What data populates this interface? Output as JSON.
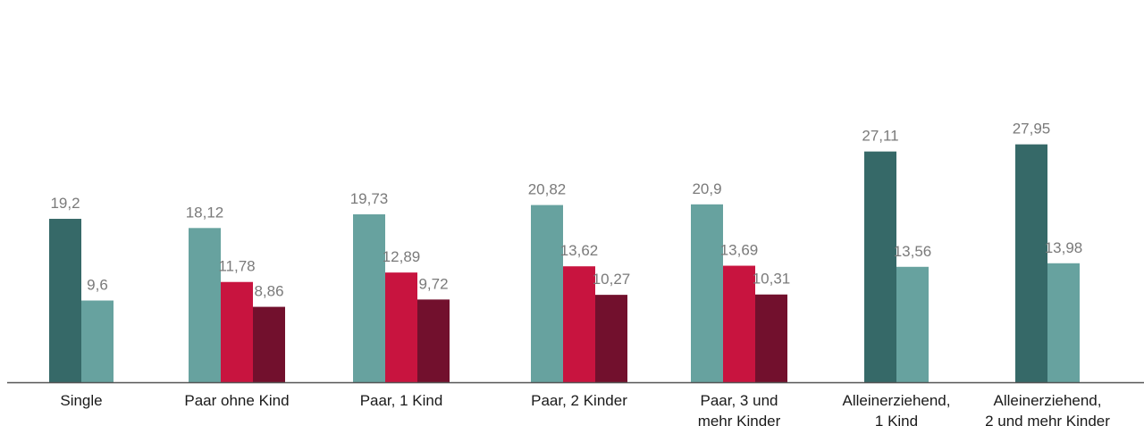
{
  "chart_data": {
    "type": "bar",
    "title": "",
    "xlabel": "",
    "ylabel": "",
    "ylim": [
      0,
      31.5
    ],
    "grid": false,
    "legend": "none",
    "categories": [
      [
        "Single"
      ],
      [
        "Paar ohne Kind"
      ],
      [
        "Paar, 1 Kind"
      ],
      [
        "Paar, 2 Kinder"
      ],
      [
        "Paar, 3 und",
        "mehr Kinder"
      ],
      [
        "Alleinerziehend,",
        "1 Kind"
      ],
      [
        "Alleinerziehend,",
        "2 und mehr Kinder"
      ]
    ],
    "groups": [
      {
        "bars": [
          {
            "value": 19.2,
            "label": "19,2",
            "color": "#366968"
          },
          {
            "value": 9.6,
            "label": "9,6",
            "color": "#67a29f"
          }
        ]
      },
      {
        "bars": [
          {
            "value": 18.12,
            "label": "18,12",
            "color": "#67a29f"
          },
          {
            "value": 11.78,
            "label": "11,78",
            "color": "#c8143f"
          },
          {
            "value": 8.86,
            "label": "8,86",
            "color": "#72102d"
          }
        ]
      },
      {
        "bars": [
          {
            "value": 19.73,
            "label": "19,73",
            "color": "#67a29f"
          },
          {
            "value": 12.89,
            "label": "12,89",
            "color": "#c8143f"
          },
          {
            "value": 9.72,
            "label": "9,72",
            "color": "#72102d"
          }
        ]
      },
      {
        "bars": [
          {
            "value": 20.82,
            "label": "20,82",
            "color": "#67a29f"
          },
          {
            "value": 13.62,
            "label": "13,62",
            "color": "#c8143f"
          },
          {
            "value": 10.27,
            "label": "10,27",
            "color": "#72102d"
          }
        ]
      },
      {
        "bars": [
          {
            "value": 20.9,
            "label": "20,9",
            "color": "#67a29f"
          },
          {
            "value": 13.69,
            "label": "13,69",
            "color": "#c8143f"
          },
          {
            "value": 10.31,
            "label": "10,31",
            "color": "#72102d"
          }
        ]
      },
      {
        "bars": [
          {
            "value": 27.11,
            "label": "27,11",
            "color": "#366968"
          },
          {
            "value": 13.56,
            "label": "13,56",
            "color": "#67a29f"
          }
        ]
      },
      {
        "bars": [
          {
            "value": 27.95,
            "label": "27,95",
            "color": "#366968"
          },
          {
            "value": 13.98,
            "label": "13,98",
            "color": "#67a29f"
          }
        ]
      }
    ]
  }
}
